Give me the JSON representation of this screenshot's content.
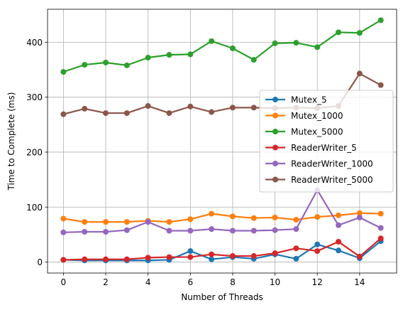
{
  "chart_data": {
    "type": "line",
    "title": "",
    "xlabel": "Number of Threads",
    "ylabel": "Time to Complete (ms)",
    "x": [
      0,
      1,
      2,
      3,
      4,
      5,
      6,
      7,
      8,
      9,
      10,
      11,
      12,
      13,
      14,
      15
    ],
    "xlim": [
      -0.75,
      15.75
    ],
    "ylim": [
      -20,
      460
    ],
    "xticks": [
      0,
      2,
      4,
      6,
      8,
      10,
      12,
      14
    ],
    "yticks": [
      0,
      100,
      200,
      300,
      400
    ],
    "grid": true,
    "legend_position": "center right",
    "series": [
      {
        "name": "Mutex_5",
        "color": "#1f77b4",
        "values": [
          4,
          3,
          3,
          3,
          3,
          4,
          20,
          5,
          9,
          6,
          14,
          6,
          32,
          21,
          7,
          38
        ]
      },
      {
        "name": "Mutex_1000",
        "color": "#ff7f0e",
        "values": [
          79,
          73,
          73,
          73,
          75,
          73,
          78,
          88,
          83,
          80,
          81,
          77,
          82,
          85,
          89,
          88
        ]
      },
      {
        "name": "Mutex_5000",
        "color": "#2ca02c",
        "values": [
          346,
          359,
          363,
          358,
          372,
          377,
          378,
          402,
          389,
          368,
          398,
          399,
          391,
          418,
          417,
          440
        ]
      },
      {
        "name": "ReaderWriter_5",
        "color": "#d62728",
        "values": [
          4,
          5,
          5,
          5,
          8,
          9,
          9,
          14,
          11,
          11,
          16,
          25,
          20,
          37,
          10,
          43
        ]
      },
      {
        "name": "ReaderWriter_1000",
        "color": "#9467bd",
        "values": [
          54,
          55,
          55,
          58,
          73,
          57,
          57,
          60,
          57,
          57,
          58,
          60,
          131,
          67,
          81,
          62
        ]
      },
      {
        "name": "ReaderWriter_5000",
        "color": "#8c564b",
        "values": [
          269,
          279,
          271,
          271,
          284,
          271,
          283,
          273,
          281,
          281,
          280,
          281,
          280,
          284,
          343,
          322
        ]
      }
    ]
  }
}
